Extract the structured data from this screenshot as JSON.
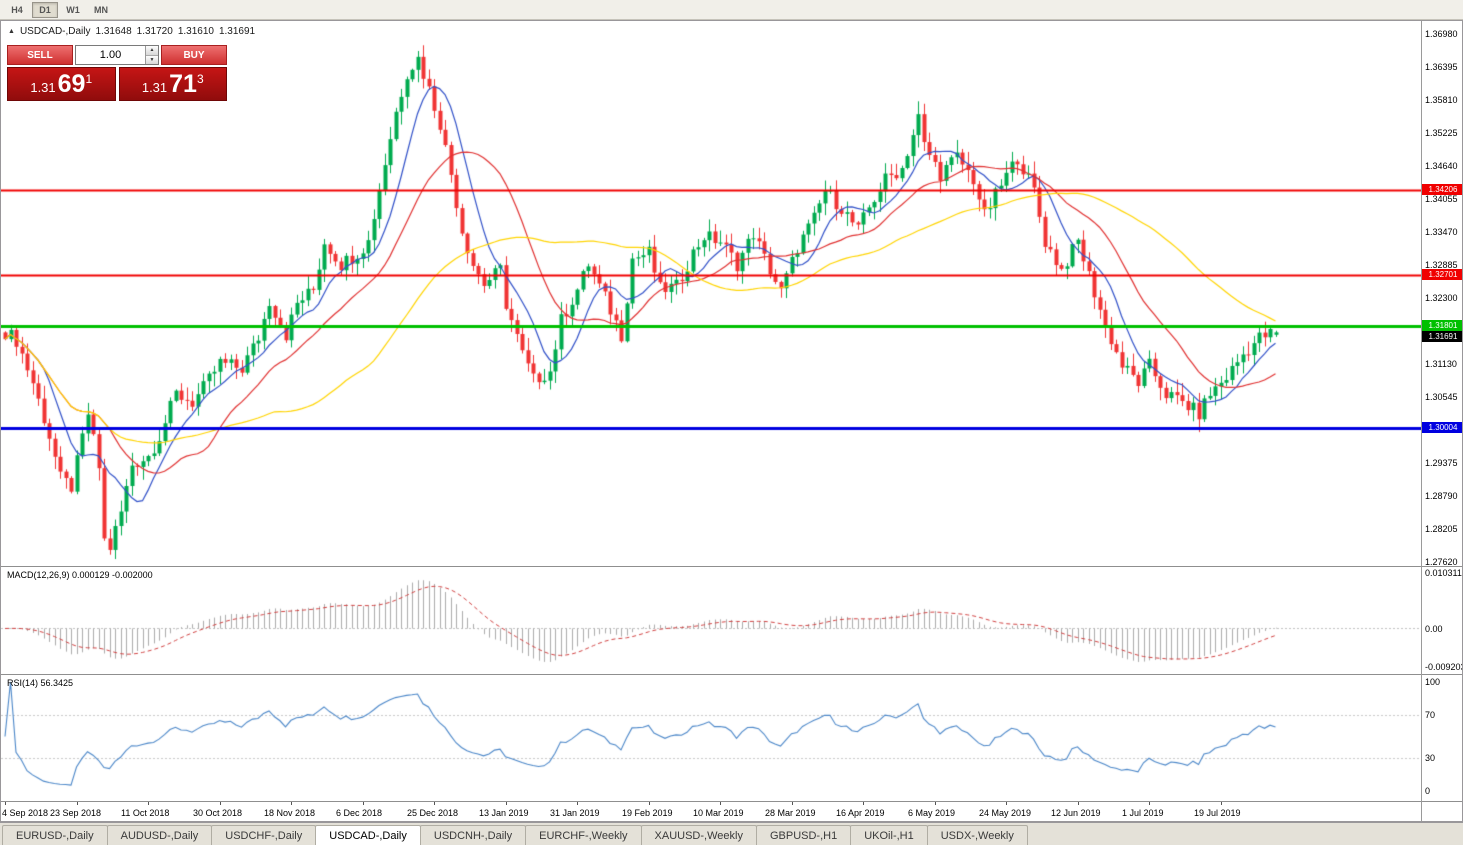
{
  "toolbar": {
    "timeframe_buttons": [
      "H4",
      "D1",
      "W1",
      "MN"
    ],
    "active_timeframe": "D1"
  },
  "icons": {
    "symbol_arrow_icon": "▲",
    "spinner_up_icon": "▲",
    "spinner_down_icon": "▼"
  },
  "chart": {
    "header": {
      "symbol": "USDCAD-,Daily",
      "open": "1.31648",
      "high": "1.31720",
      "low": "1.31610",
      "close": "1.31691"
    },
    "trade_panel": {
      "sell_label": "SELL",
      "buy_label": "BUY",
      "volume": "1.00",
      "sell_price": {
        "big": "1.31",
        "mid": "69",
        "sup": "1"
      },
      "buy_price": {
        "big": "1.31",
        "mid": "71",
        "sup": "3"
      }
    },
    "hlines": [
      {
        "price": 1.34206,
        "label": "1.34206",
        "color": "#f00000",
        "width": 2
      },
      {
        "price": 1.32701,
        "label": "1.32701",
        "color": "#f00000",
        "width": 2
      },
      {
        "price": 1.31801,
        "label": "1.31801",
        "color": "#00c000",
        "width": 3
      },
      {
        "price": 1.30004,
        "label": "1.30004",
        "color": "#0000e0",
        "width": 3
      }
    ],
    "current_price": {
      "value": 1.31691,
      "label": "1.31691"
    },
    "price_axis_labels": [
      "1.36980",
      "1.36395",
      "1.35810",
      "1.35225",
      "1.34640",
      "1.34055",
      "1.33470",
      "1.32885",
      "1.32300",
      "1.31715",
      "1.31130",
      "1.30545",
      "1.29960",
      "1.29375",
      "1.28790",
      "1.28205",
      "1.27620"
    ],
    "date_axis_labels": [
      "4 Sep 2018",
      "23 Sep 2018",
      "11 Oct 2018",
      "30 Oct 2018",
      "18 Nov 2018",
      "6 Dec 2018",
      "25 Dec 2018",
      "13 Jan 2019",
      "31 Jan 2019",
      "19 Feb 2019",
      "10 Mar 2019",
      "28 Mar 2019",
      "16 Apr 2019",
      "6 May 2019",
      "24 May 2019",
      "12 Jun 2019",
      "1 Jul 2019",
      "19 Jul 2019"
    ]
  },
  "macd": {
    "label": "MACD(12,26,9) 0.000129 -0.002000",
    "axis_labels": [
      "0.010311",
      "0.00",
      "-0.009203"
    ],
    "histogram_color": "#ababab",
    "signal_color": "#d04040"
  },
  "rsi": {
    "label": "RSI(14) 56.3425",
    "line_color": "#4a86c8",
    "levels": [
      {
        "value": 100,
        "line": false
      },
      {
        "value": 70,
        "line": true
      },
      {
        "value": 30,
        "line": true
      },
      {
        "value": 0,
        "line": false
      }
    ]
  },
  "tabs": {
    "items": [
      "EURUSD-,Daily",
      "AUDUSD-,Daily",
      "USDCHF-,Daily",
      "USDCAD-,Daily",
      "USDCNH-,Daily",
      "EURCHF-,Weekly",
      "XAUUSD-,Weekly",
      "GBPUSD-,H1",
      "UKOil-,H1",
      "USDX-,Weekly"
    ],
    "active_index": 3
  },
  "chart_data": {
    "type": "candlestick",
    "symbol": "USDCAD",
    "timeframe": "Daily",
    "bars": 232,
    "bars_per_date_label": 13,
    "x0": 4,
    "bar_spacing": 5.5,
    "ylim": [
      1.27549,
      1.3721
    ],
    "colors": {
      "up": "#00ab4f",
      "down": "#f03434"
    },
    "moving_averages": [
      {
        "period": 8,
        "color": "#3050c8"
      },
      {
        "period": 20,
        "color": "#e03030"
      },
      {
        "period": 50,
        "color": "#ffd400"
      }
    ],
    "last_bar_ohlc": {
      "open": 1.31648,
      "high": 1.3172,
      "low": 1.3161,
      "close": 1.31691
    },
    "close_keyframes": [
      [
        0,
        1.317
      ],
      [
        2,
        1.3155
      ],
      [
        5,
        1.308
      ],
      [
        8,
        1.2985
      ],
      [
        10,
        1.291
      ],
      [
        12,
        1.2895
      ],
      [
        15,
        1.3025
      ],
      [
        17,
        1.293
      ],
      [
        18,
        1.28
      ],
      [
        19,
        1.2788
      ],
      [
        21,
        1.285
      ],
      [
        23,
        1.2935
      ],
      [
        26,
        1.295
      ],
      [
        28,
        1.2985
      ],
      [
        31,
        1.306
      ],
      [
        34,
        1.3045
      ],
      [
        36,
        1.307
      ],
      [
        39,
        1.3115
      ],
      [
        43,
        1.3105
      ],
      [
        46,
        1.316
      ],
      [
        48,
        1.3225
      ],
      [
        51,
        1.3165
      ],
      [
        53,
        1.322
      ],
      [
        56,
        1.3245
      ],
      [
        58,
        1.333
      ],
      [
        61,
        1.329
      ],
      [
        64,
        1.331
      ],
      [
        66,
        1.333
      ],
      [
        69,
        1.347
      ],
      [
        71,
        1.356
      ],
      [
        73,
        1.363
      ],
      [
        75,
        1.3655
      ],
      [
        77,
        1.36
      ],
      [
        79,
        1.354
      ],
      [
        81,
        1.345
      ],
      [
        83,
        1.335
      ],
      [
        85,
        1.329
      ],
      [
        87,
        1.3255
      ],
      [
        90,
        1.328
      ],
      [
        91,
        1.322
      ],
      [
        94,
        1.313
      ],
      [
        96,
        1.3085
      ],
      [
        99,
        1.31
      ],
      [
        101,
        1.319
      ],
      [
        104,
        1.3245
      ],
      [
        106,
        1.329
      ],
      [
        109,
        1.323
      ],
      [
        112,
        1.3165
      ],
      [
        114,
        1.33
      ],
      [
        117,
        1.331
      ],
      [
        119,
        1.3245
      ],
      [
        122,
        1.325
      ],
      [
        125,
        1.331
      ],
      [
        127,
        1.334
      ],
      [
        130,
        1.333
      ],
      [
        133,
        1.329
      ],
      [
        136,
        1.3345
      ],
      [
        138,
        1.33
      ],
      [
        141,
        1.324
      ],
      [
        144,
        1.332
      ],
      [
        147,
        1.337
      ],
      [
        149,
        1.342
      ],
      [
        152,
        1.339
      ],
      [
        155,
        1.335
      ],
      [
        157,
        1.339
      ],
      [
        160,
        1.344
      ],
      [
        163,
        1.346
      ],
      [
        166,
        1.355
      ],
      [
        167,
        1.35
      ],
      [
        170,
        1.345
      ],
      [
        173,
        1.348
      ],
      [
        176,
        1.344
      ],
      [
        178,
        1.3375
      ],
      [
        181,
        1.343
      ],
      [
        184,
        1.348
      ],
      [
        187,
        1.342
      ],
      [
        189,
        1.333
      ],
      [
        192,
        1.328
      ],
      [
        195,
        1.333
      ],
      [
        197,
        1.327
      ],
      [
        200,
        1.318
      ],
      [
        203,
        1.311
      ],
      [
        206,
        1.308
      ],
      [
        208,
        1.311
      ],
      [
        211,
        1.306
      ],
      [
        214,
        1.3045
      ],
      [
        217,
        1.3025
      ],
      [
        219,
        1.306
      ],
      [
        222,
        1.309
      ],
      [
        225,
        1.313
      ],
      [
        228,
        1.316
      ],
      [
        231,
        1.3169
      ]
    ],
    "indicators": [
      {
        "name": "MACD",
        "params": [
          12,
          26,
          9
        ]
      },
      {
        "name": "RSI",
        "params": [
          14
        ]
      }
    ]
  }
}
